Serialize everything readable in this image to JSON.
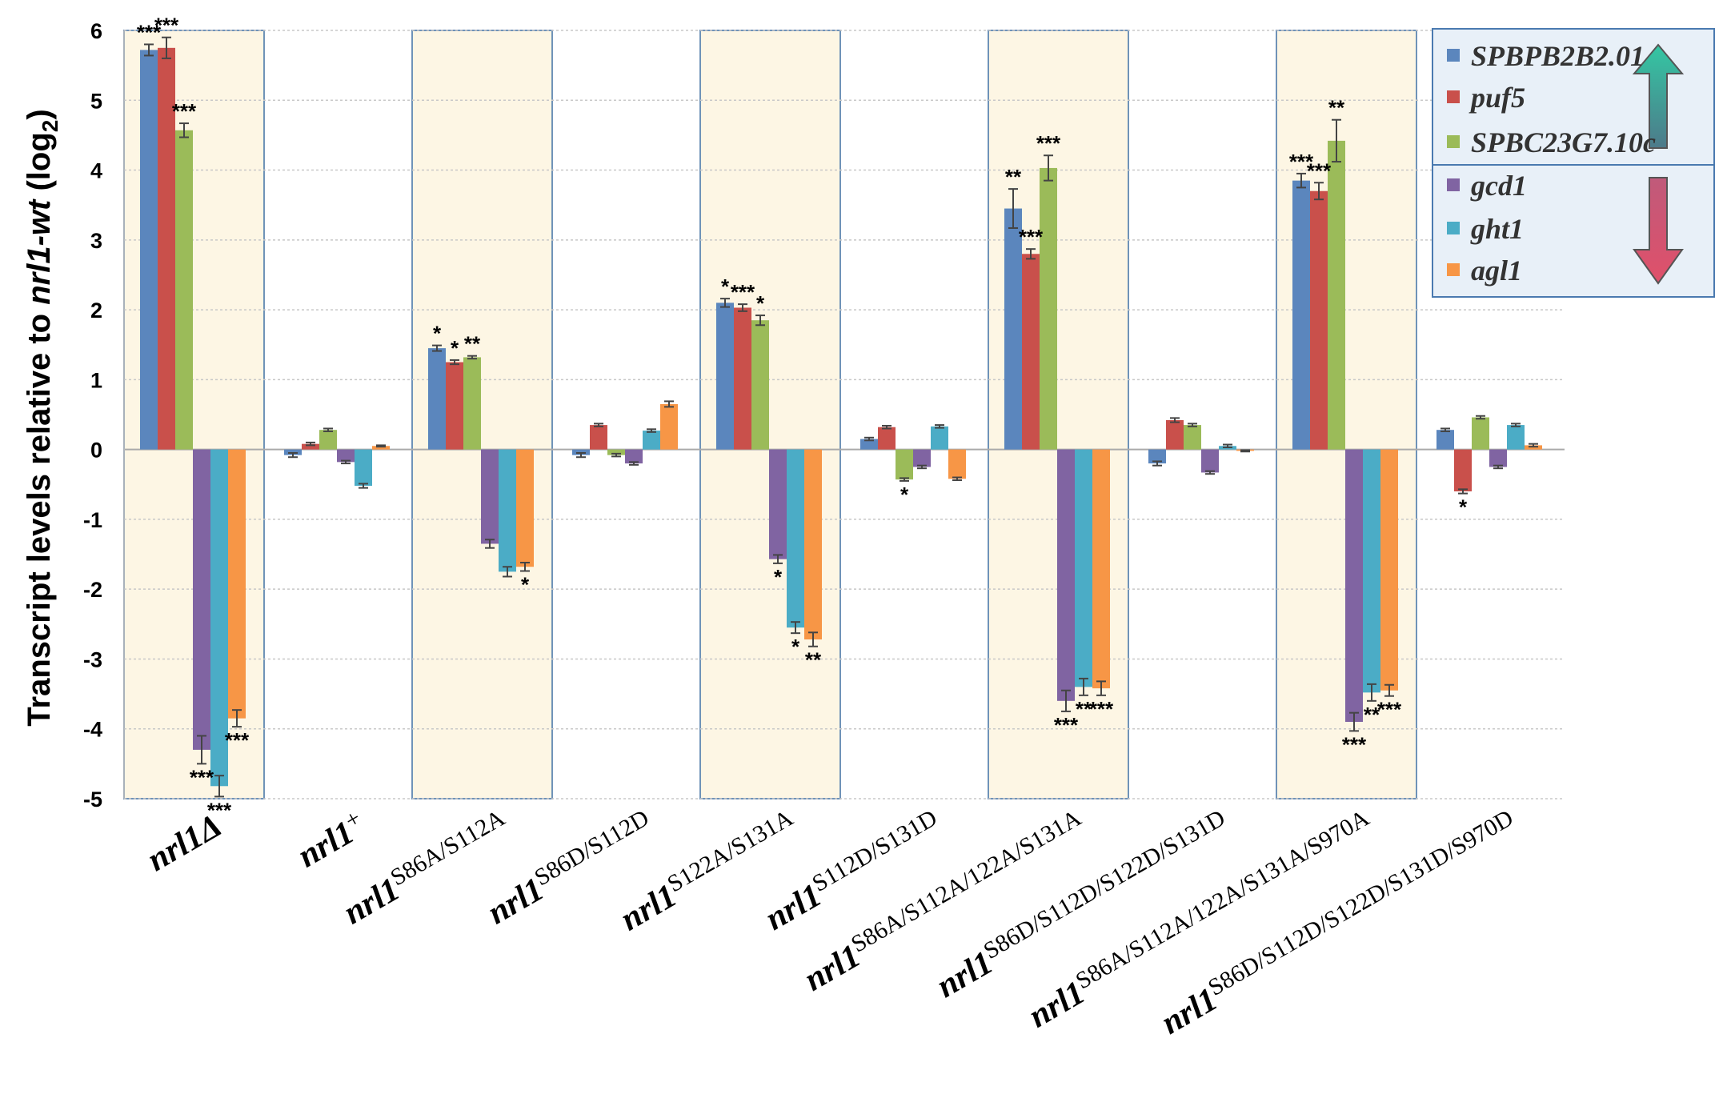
{
  "chart_data": {
    "type": "bar",
    "ylabel": {
      "pre": "Transcript levels relative to ",
      "gene": "nrl1-wt",
      "post": " (log",
      "sub": "2",
      "close": ")"
    },
    "ylim": [
      -5,
      6
    ],
    "yticks": [
      "-5",
      "-4",
      "-3",
      "-2",
      "-1",
      "0",
      "1",
      "2",
      "3",
      "4",
      "5",
      "6"
    ],
    "grid": true,
    "categories": [
      {
        "base": "nrl1",
        "sup": "Δ",
        "sup_style": "italic",
        "highlighted": true
      },
      {
        "base": "nrl1",
        "sup": "+",
        "sup_style": "normal",
        "highlighted": false
      },
      {
        "base": "nrl1",
        "sup": "S86A/S112A",
        "sup_style": "normal",
        "highlighted": true
      },
      {
        "base": "nrl1",
        "sup": "S86D/S112D",
        "sup_style": "normal",
        "highlighted": false
      },
      {
        "base": "nrl1",
        "sup": "S122A/S131A",
        "sup_style": "normal",
        "highlighted": true
      },
      {
        "base": "nrl1",
        "sup": "S112D/S131D",
        "sup_style": "normal",
        "highlighted": false
      },
      {
        "base": "nrl1",
        "sup": "S86A/S112A/122A/S131A",
        "sup_style": "normal",
        "highlighted": true
      },
      {
        "base": "nrl1",
        "sup": "S86D/S112D/S122D/S131D",
        "sup_style": "normal",
        "highlighted": false
      },
      {
        "base": "nrl1",
        "sup": "S86A/S112A/122A/S131A/S970A",
        "sup_style": "normal",
        "highlighted": true
      },
      {
        "base": "nrl1",
        "sup": "S86D/S112D/S122D/S131D/S970D",
        "sup_style": "normal",
        "highlighted": false
      }
    ],
    "series": [
      {
        "name": "SPBPB2B2.01",
        "color": "#5b86bd",
        "values": [
          5.72,
          -0.08,
          1.45,
          -0.08,
          2.1,
          0.15,
          3.45,
          -0.2,
          3.85,
          0.28
        ],
        "errors": [
          0.08,
          0.03,
          0.04,
          0.03,
          0.06,
          0.02,
          0.28,
          0.03,
          0.1,
          0.02
        ],
        "sig": [
          "***",
          "",
          "*",
          "",
          "*",
          "",
          "**",
          "",
          "***",
          ""
        ]
      },
      {
        "name": "puf5",
        "color": "#c9504b",
        "values": [
          5.75,
          0.08,
          1.25,
          0.35,
          2.03,
          0.32,
          2.8,
          0.42,
          3.7,
          -0.6
        ],
        "errors": [
          0.15,
          0.02,
          0.03,
          0.02,
          0.05,
          0.02,
          0.07,
          0.03,
          0.12,
          0.03
        ],
        "sig": [
          "***",
          "",
          "*",
          "",
          "***",
          "",
          "***",
          "",
          "***",
          "*"
        ]
      },
      {
        "name": "SPBC23G7.10c",
        "color": "#9bbb59",
        "values": [
          4.57,
          0.28,
          1.32,
          -0.08,
          1.85,
          -0.43,
          4.03,
          0.35,
          4.42,
          0.46
        ],
        "errors": [
          0.1,
          0.02,
          0.02,
          0.02,
          0.07,
          0.02,
          0.18,
          0.02,
          0.3,
          0.02
        ],
        "sig": [
          "***",
          "",
          "**",
          "",
          "*",
          "*",
          "***",
          "",
          "**",
          ""
        ]
      },
      {
        "name": "gcd1",
        "color": "#8064a2",
        "values": [
          -4.3,
          -0.18,
          -1.35,
          -0.2,
          -1.57,
          -0.25,
          -3.6,
          -0.33,
          -3.9,
          -0.25
        ],
        "errors": [
          0.2,
          0.02,
          0.06,
          0.02,
          0.06,
          0.02,
          0.15,
          0.02,
          0.13,
          0.02
        ],
        "sig": [
          "***",
          "",
          "",
          "",
          "*",
          "",
          "***",
          "",
          "***",
          ""
        ]
      },
      {
        "name": "ght1",
        "color": "#4bacc6",
        "values": [
          -4.82,
          -0.52,
          -1.75,
          0.27,
          -2.55,
          0.33,
          -3.4,
          0.05,
          -3.48,
          0.35
        ],
        "errors": [
          0.15,
          0.03,
          0.07,
          0.02,
          0.08,
          0.02,
          0.12,
          0.02,
          0.12,
          0.02
        ],
        "sig": [
          "***",
          "",
          "",
          "",
          "*",
          "",
          "**",
          "",
          "**",
          ""
        ]
      },
      {
        "name": "agl1",
        "color": "#f79646",
        "values": [
          -3.85,
          0.05,
          -1.68,
          0.65,
          -2.72,
          -0.42,
          -3.42,
          -0.02,
          -3.45,
          0.06
        ],
        "errors": [
          0.12,
          0.01,
          0.06,
          0.04,
          0.1,
          0.02,
          0.1,
          0.01,
          0.08,
          0.02
        ],
        "sig": [
          "***",
          "",
          "*",
          "",
          "**",
          "",
          "***",
          "",
          "***",
          ""
        ]
      }
    ],
    "legend": {
      "position": "top-right",
      "groups": [
        {
          "direction": "up",
          "series": [
            0,
            1,
            2
          ]
        },
        {
          "direction": "down",
          "series": [
            3,
            4,
            5
          ]
        }
      ]
    }
  }
}
